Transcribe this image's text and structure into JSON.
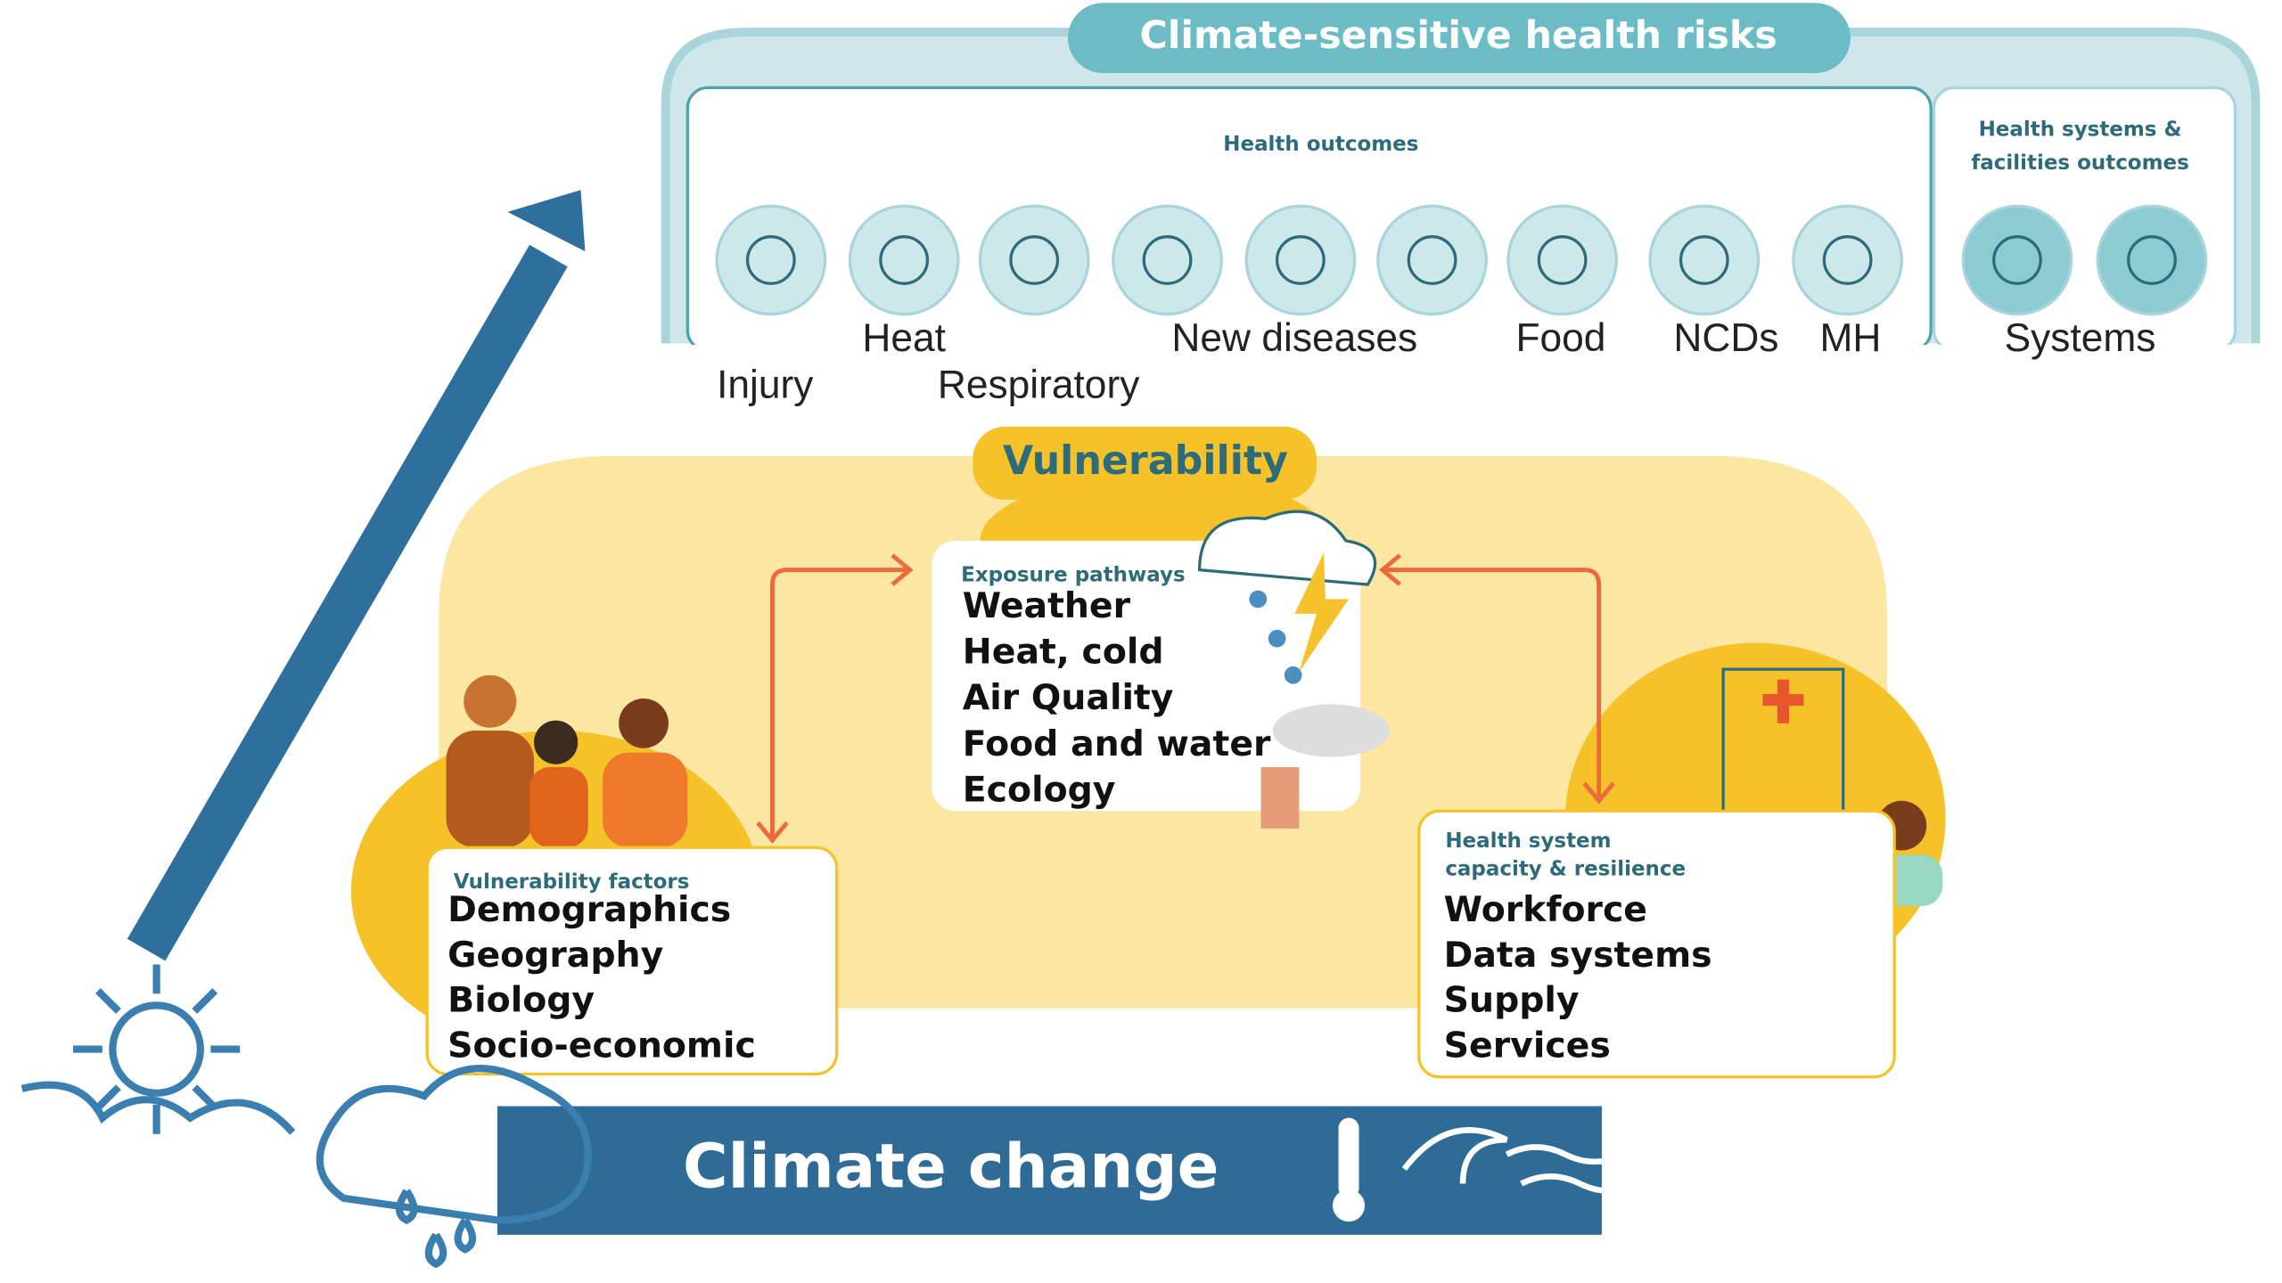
{
  "top_banner": {
    "title": "Climate-sensitive health risks"
  },
  "health_outcomes": {
    "heading": "Health outcomes",
    "items": [
      "Injury",
      "Heat",
      "Respiratory",
      "New diseases",
      "Food",
      "NCDs",
      "MH"
    ]
  },
  "systems_outcomes": {
    "heading": [
      "Health systems &",
      "facilities outcomes"
    ],
    "items": [
      "Systems"
    ]
  },
  "vulnerability": {
    "title": "Vulnerability"
  },
  "exposure_pathways": {
    "heading": "Exposure pathways",
    "items": [
      "Weather",
      "Heat, cold",
      "Air Quality",
      "Food and water",
      "Ecology"
    ]
  },
  "vulnerability_factors": {
    "heading": "Vulnerability factors",
    "items": [
      "Demographics",
      "Geography",
      "Biology",
      "Socio-economic"
    ]
  },
  "health_system": {
    "heading": [
      "Health system",
      "capacity & resilience"
    ],
    "items": [
      "Workforce",
      "Data systems",
      "Supply",
      "Services"
    ]
  },
  "climate_change": {
    "title": "Climate change"
  }
}
